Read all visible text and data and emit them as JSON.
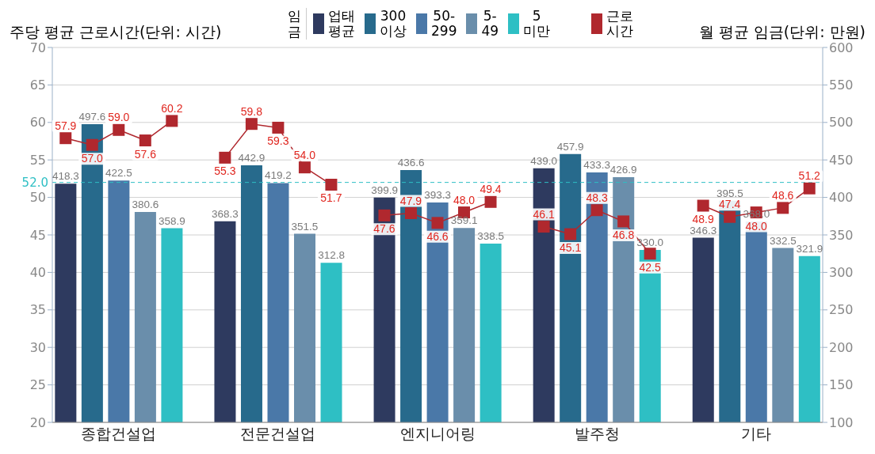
{
  "chart_data": {
    "type": "bar",
    "stacked": true,
    "ylabel": "주당 평균 근로시간(단위: 시간)",
    "y2label": "월 평균 임금(단위: 만원)",
    "legend_title": "임금",
    "categories": [
      null,
      null,
      "종합건설업",
      null,
      null,
      null,
      null,
      null,
      "전문건설업",
      null,
      null,
      null,
      null,
      null,
      "엔지니어링",
      null,
      null,
      null,
      null,
      null,
      "발주청",
      null,
      null,
      null,
      null,
      null,
      "기타",
      null,
      null
    ],
    "series": [
      {
        "name": "업태\n평균",
        "color": "#2e3a5f",
        "axis": "y2",
        "values": [
          418.3,
          null,
          null,
          null,
          null,
          null,
          368.3,
          null,
          null,
          null,
          null,
          null,
          399.9,
          null,
          null,
          null,
          null,
          null,
          439.0,
          null,
          null,
          null,
          null,
          null,
          346.3,
          null,
          null,
          null,
          null
        ],
        "value_labels": [
          "418.3",
          null,
          null,
          null,
          null,
          null,
          "368.3",
          null,
          null,
          null,
          null,
          null,
          "399.9",
          null,
          null,
          null,
          null,
          null,
          "439.0",
          null,
          null,
          null,
          null,
          null,
          "346.3",
          null,
          null,
          null,
          null
        ]
      },
      {
        "name": "300\n이상",
        "color": "#276a8c",
        "axis": "y2",
        "values": [
          null,
          497.6,
          null,
          null,
          null,
          null,
          null,
          442.9,
          null,
          null,
          null,
          null,
          null,
          436.6,
          null,
          null,
          null,
          null,
          null,
          457.9,
          null,
          null,
          null,
          null,
          null,
          395.5,
          null,
          null,
          null
        ],
        "value_labels": [
          null,
          "497.6",
          null,
          null,
          null,
          null,
          null,
          "442.9",
          null,
          null,
          null,
          null,
          null,
          "436.6",
          null,
          null,
          null,
          null,
          null,
          "457.9",
          null,
          null,
          null,
          null,
          null,
          "395.5",
          null,
          null,
          null
        ]
      },
      {
        "name": "50-\n299",
        "color": "#4a78a8",
        "axis": "y2",
        "values": [
          null,
          null,
          422.5,
          null,
          null,
          null,
          null,
          null,
          419.2,
          null,
          null,
          null,
          null,
          null,
          393.3,
          null,
          null,
          null,
          null,
          null,
          433.3,
          null,
          null,
          null,
          null,
          null,
          368.0,
          null,
          null
        ],
        "value_labels": [
          null,
          null,
          "422.5",
          null,
          null,
          null,
          null,
          null,
          "419.2",
          null,
          null,
          null,
          null,
          null,
          "393.3",
          null,
          null,
          null,
          null,
          null,
          "433.3",
          null,
          null,
          null,
          null,
          null,
          "368.0",
          null,
          null
        ]
      },
      {
        "name": "5-\n49",
        "color": "#6a8eab",
        "axis": "y2",
        "values": [
          null,
          null,
          null,
          380.6,
          null,
          null,
          null,
          null,
          null,
          351.5,
          null,
          null,
          null,
          null,
          null,
          359.1,
          null,
          null,
          null,
          null,
          null,
          426.9,
          null,
          null,
          null,
          null,
          null,
          332.5,
          null
        ],
        "value_labels": [
          null,
          null,
          null,
          "380.6",
          null,
          null,
          null,
          null,
          null,
          "351.5",
          null,
          null,
          null,
          null,
          null,
          "359.1",
          null,
          null,
          null,
          null,
          null,
          "426.9",
          null,
          null,
          null,
          null,
          null,
          "332.5",
          null
        ]
      },
      {
        "name": "5\n미만",
        "color": "#2ebfc4",
        "axis": "y2",
        "values": [
          null,
          null,
          null,
          null,
          358.9,
          null,
          null,
          null,
          null,
          null,
          312.8,
          null,
          null,
          null,
          null,
          null,
          338.5,
          null,
          null,
          null,
          null,
          null,
          330.0,
          null,
          null,
          null,
          null,
          null,
          321.9
        ],
        "value_labels": [
          null,
          null,
          null,
          null,
          "358.9",
          null,
          null,
          null,
          null,
          null,
          "312.8",
          null,
          null,
          null,
          null,
          null,
          "338.5",
          null,
          null,
          null,
          null,
          null,
          "330.0",
          null,
          null,
          null,
          null,
          null,
          "321.9"
        ]
      },
      {
        "name": "근로\n시간",
        "type": "line",
        "color": "#b0282e",
        "axis": "y",
        "values": [
          57.9,
          57.0,
          59.0,
          57.6,
          60.2,
          null,
          55.3,
          59.8,
          59.3,
          54.0,
          51.7,
          null,
          47.6,
          47.9,
          46.6,
          48.0,
          49.4,
          null,
          46.1,
          45.1,
          48.3,
          46.8,
          42.5,
          null,
          48.9,
          47.4,
          48.0,
          48.6,
          51.2
        ],
        "value_labels": [
          "57.9",
          "57.0",
          "59.0",
          "57.6",
          "60.2",
          null,
          "55.3",
          "59.8",
          "59.3",
          "54.0",
          "51.7",
          null,
          "47.6",
          "47.9",
          "46.6",
          "48.0",
          "49.4",
          null,
          "46.1",
          "45.1",
          "48.3",
          "46.8",
          "42.5",
          null,
          "48.9",
          "47.4",
          "48.0",
          "48.6",
          "51.2"
        ]
      }
    ],
    "ylim": [
      20,
      70
    ],
    "yticks": [
      20,
      25,
      30,
      35,
      40,
      45,
      50,
      55,
      60,
      65,
      70
    ],
    "y2lim": [
      100,
      600
    ],
    "y2ticks": [
      100,
      150,
      200,
      250,
      300,
      350,
      400,
      450,
      500,
      550,
      600
    ],
    "ref_lines": [
      {
        "axis": "y",
        "value": 52.0,
        "label": "52.0",
        "color": "#2ebfc4",
        "line_style": "dashed"
      }
    ],
    "grid": "y",
    "legend": "top",
    "marker": "square"
  }
}
